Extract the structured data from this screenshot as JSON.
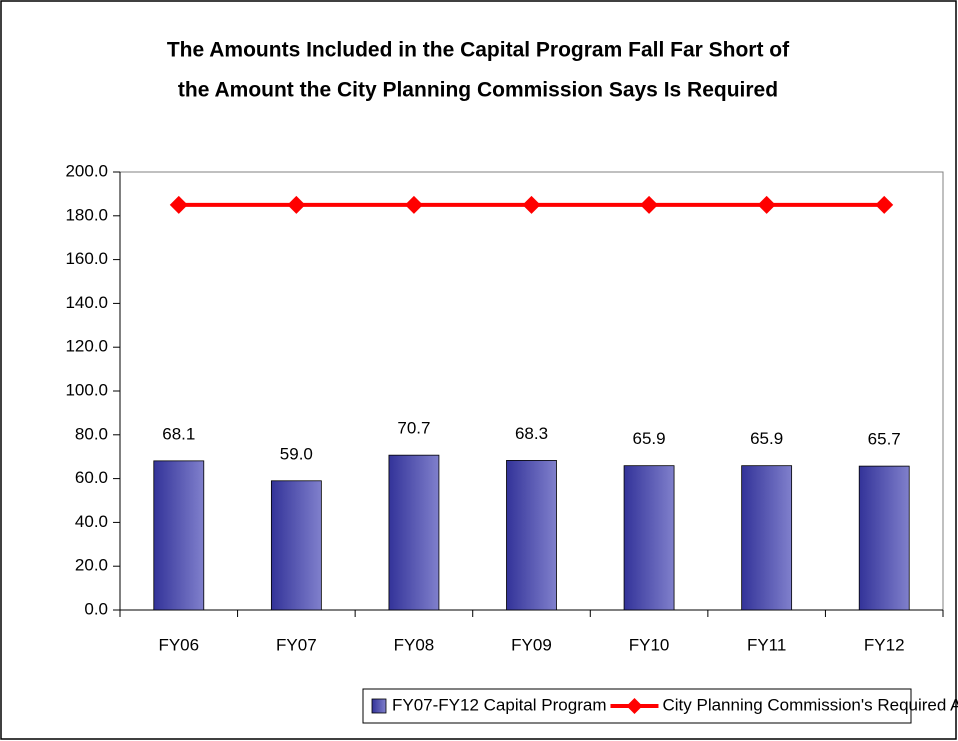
{
  "chart_data": {
    "type": "combo",
    "title": [
      "The Amounts Included in the Capital Program Fall Far Short of",
      "the Amount the City Planning Commission Says Is Required"
    ],
    "categories": [
      "FY06",
      "FY07",
      "FY08",
      "FY09",
      "FY10",
      "FY11",
      "FY12"
    ],
    "series": [
      {
        "name": "FY07-FY12 Capital Program",
        "type": "bar",
        "color": "#333399",
        "values": [
          68.1,
          59.0,
          70.7,
          68.3,
          65.9,
          65.9,
          65.7
        ],
        "value_labels": [
          "68.1",
          "59.0",
          "70.7",
          "68.3",
          "65.9",
          "65.9",
          "65.7"
        ]
      },
      {
        "name": "City Planning Commission's Required Amount",
        "type": "line",
        "color": "#ff0000",
        "values": [
          185,
          185,
          185,
          185,
          185,
          185,
          185
        ]
      }
    ],
    "ylim": [
      0,
      200
    ],
    "yticks": [
      {
        "value": 0,
        "label": "0.0"
      },
      {
        "value": 20,
        "label": "20.0"
      },
      {
        "value": 40,
        "label": "40.0"
      },
      {
        "value": 60,
        "label": "60.0"
      },
      {
        "value": 80,
        "label": "80.0"
      },
      {
        "value": 100,
        "label": "100.0"
      },
      {
        "value": 120,
        "label": "120.0"
      },
      {
        "value": 140,
        "label": "140.0"
      },
      {
        "value": 160,
        "label": "160.0"
      },
      {
        "value": 180,
        "label": "180.0"
      },
      {
        "value": 200,
        "label": "200.0"
      }
    ],
    "grid": false,
    "legend": "bottom"
  }
}
